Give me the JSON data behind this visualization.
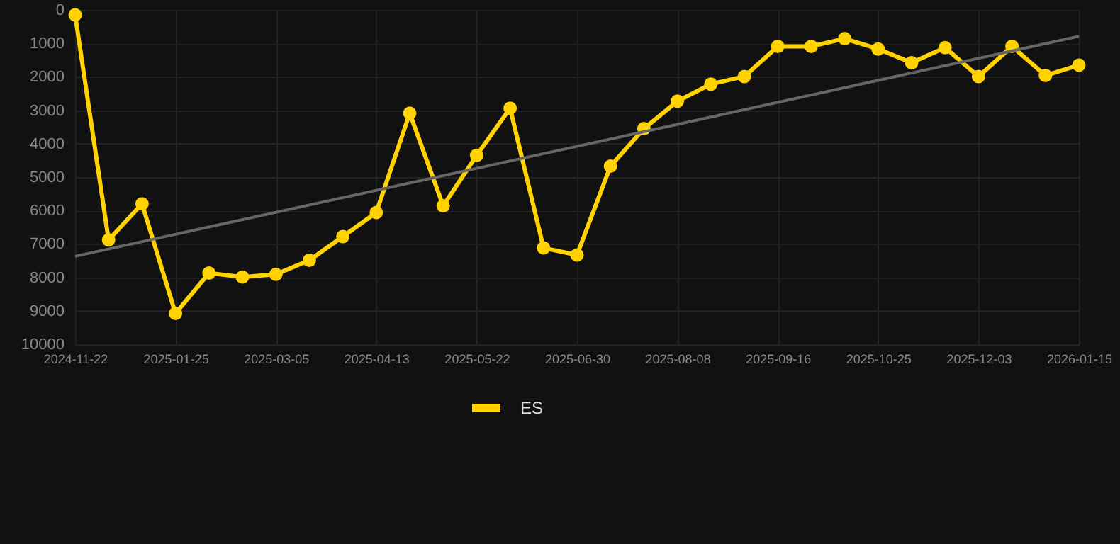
{
  "chart_data": {
    "type": "line",
    "categories": [
      "2024-11-22",
      null,
      null,
      "2025-01-25",
      null,
      null,
      "2025-03-05",
      null,
      null,
      "2025-04-13",
      null,
      null,
      "2025-05-22",
      null,
      null,
      "2025-06-30",
      null,
      null,
      "2025-08-08",
      null,
      null,
      "2025-09-16",
      null,
      null,
      "2025-10-25",
      null,
      null,
      "2025-12-03",
      null,
      null,
      "2026-01-15"
    ],
    "series": [
      {
        "name": "ES",
        "color": "#ffd200",
        "values": [
          150,
          6880,
          5800,
          9080,
          7870,
          7990,
          7910,
          7490,
          6780,
          6060,
          3090,
          5860,
          4350,
          2940,
          7120,
          7330,
          4670,
          3550,
          2730,
          2220,
          1990,
          1090,
          1090,
          860,
          1170,
          1580,
          1130,
          1990,
          1090,
          1960,
          1650
        ]
      },
      {
        "type": "line",
        "marker": "none",
        "color": "#666666",
        "values": [
          7370,
          null,
          null,
          null,
          null,
          null,
          null,
          null,
          null,
          null,
          null,
          null,
          null,
          null,
          null,
          null,
          null,
          null,
          null,
          null,
          null,
          null,
          null,
          null,
          null,
          null,
          null,
          null,
          null,
          null,
          790
        ]
      }
    ],
    "ylim": [
      10000,
      0
    ],
    "yticks": [
      0,
      1000,
      2000,
      3000,
      4000,
      5000,
      6000,
      7000,
      8000,
      9000,
      10000
    ],
    "grid": true,
    "legend": "bottom",
    "marker": "circle",
    "line_style": "solid"
  }
}
